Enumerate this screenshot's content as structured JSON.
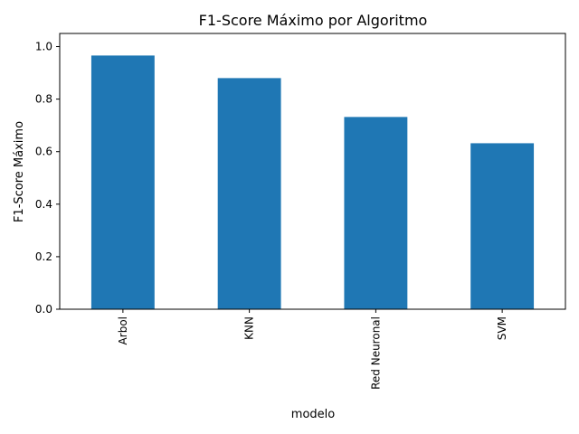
{
  "chart_data": {
    "type": "bar",
    "title": "F1-Score Máximo por Algoritmo",
    "xlabel": "modelo",
    "ylabel": "F1-Score Máximo",
    "categories": [
      "Arbol",
      "KNN",
      "Red Neuronal",
      "SVM"
    ],
    "values": [
      0.966,
      0.88,
      0.732,
      0.632
    ],
    "ylim": [
      0,
      1.05
    ],
    "yticks": [
      "0.0",
      "0.2",
      "0.4",
      "0.6",
      "0.8",
      "1.0"
    ],
    "ytick_values": [
      0.0,
      0.2,
      0.4,
      0.6,
      0.8,
      1.0
    ],
    "bar_color": "#1f77b4",
    "grid": false,
    "legend": false
  }
}
